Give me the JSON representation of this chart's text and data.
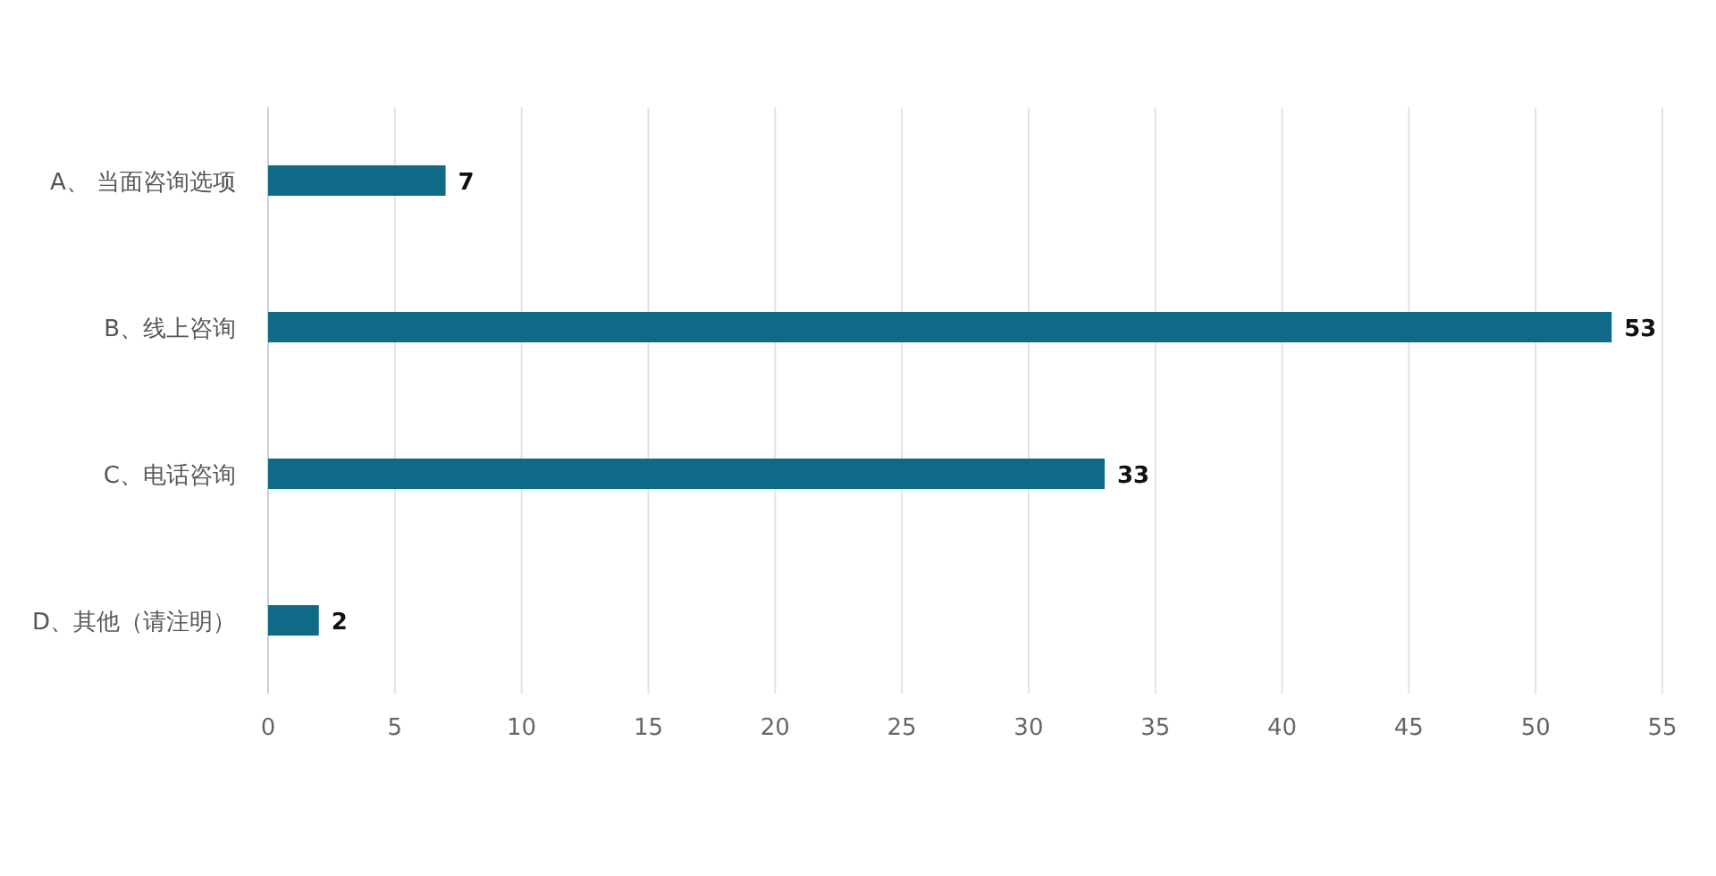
{
  "chart_data": {
    "type": "bar",
    "orientation": "horizontal",
    "categories": [
      "A、 当面咨询选项",
      "B、线上咨询",
      "C、电话咨询",
      "D、其他（请注明）"
    ],
    "values": [
      7,
      53,
      33,
      2
    ],
    "color": "#0e6a86",
    "xlim": [
      0,
      55
    ],
    "xticks": [
      0,
      5,
      10,
      15,
      20,
      25,
      30,
      35,
      40,
      45,
      50,
      55
    ],
    "grid": "x",
    "data_labels": true
  }
}
